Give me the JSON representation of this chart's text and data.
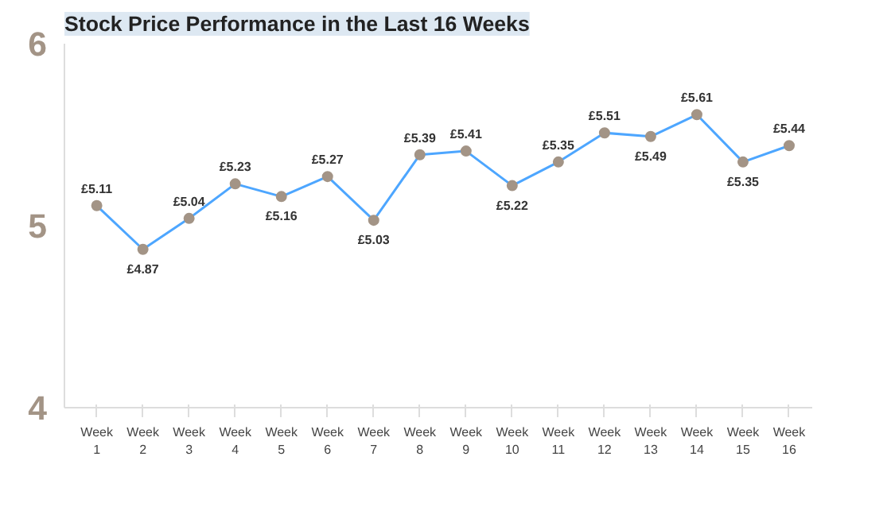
{
  "chart_data": {
    "type": "line",
    "title": "Stock Price Performance in the Last 16 Weeks",
    "categories": [
      "Week 1",
      "Week 2",
      "Week 3",
      "Week 4",
      "Week 5",
      "Week 6",
      "Week 7",
      "Week 8",
      "Week 9",
      "Week 10",
      "Week 11",
      "Week 12",
      "Week 13",
      "Week 14",
      "Week 15",
      "Week 16"
    ],
    "series": [
      {
        "color": "#4da6ff",
        "values": [
          5.11,
          4.87,
          5.04,
          5.23,
          5.16,
          5.27,
          5.03,
          5.39,
          5.41,
          5.22,
          5.35,
          5.51,
          5.49,
          5.61,
          5.35,
          5.44
        ],
        "value_labels": [
          "£5.11",
          "£4.87",
          "£5.04",
          "£5.23",
          "£5.16",
          "£5.27",
          "£5.03",
          "£5.39",
          "£5.41",
          "£5.22",
          "£5.35",
          "£5.51",
          "£5.49",
          "£5.61",
          "£5.35",
          "£5.44"
        ]
      }
    ],
    "ylim": [
      4,
      6
    ],
    "yticks": [
      4,
      5,
      6
    ],
    "grid": false,
    "marker": "circle",
    "line_style": "solid"
  }
}
